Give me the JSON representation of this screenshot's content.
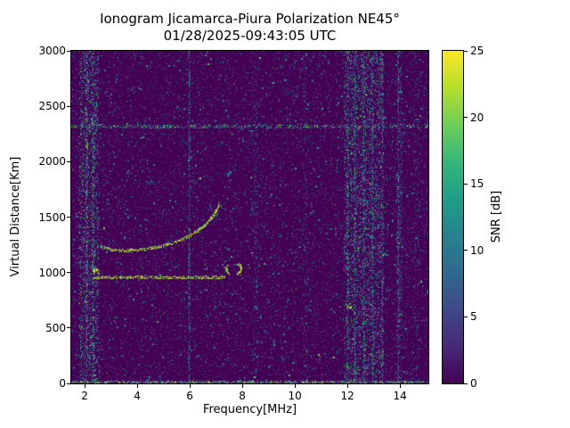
{
  "chart_data": {
    "type": "heatmap",
    "title": "Ionogram Jicamarca-Piura Polarization NE45°",
    "subtitle": "01/28/2025-09:43:05 UTC",
    "xlabel": "Frequency[MHz]",
    "ylabel": "Virtual Distance[Km]",
    "xlim": [
      1.49,
      15.08
    ],
    "ylim": [
      0,
      3000
    ],
    "xticks": [
      2,
      4,
      6,
      8,
      10,
      12,
      14
    ],
    "yticks": [
      0,
      500,
      1000,
      1500,
      2000,
      2500,
      3000
    ],
    "grid": false,
    "colorbar": {
      "label": "SNR [dB]",
      "min": 0,
      "max": 25,
      "ticks": [
        0,
        5,
        10,
        15,
        20,
        25
      ],
      "colormap": "viridis",
      "stops": [
        "#440154",
        "#482878",
        "#3e4989",
        "#31688e",
        "#26828e",
        "#1f9e89",
        "#35b779",
        "#6ece58",
        "#b5de2b",
        "#fde725"
      ]
    },
    "background_snr_db": 0,
    "noise": {
      "seed": 943,
      "sparse_points": 15000,
      "vertical_bands": [
        {
          "from_mhz": 1.78,
          "to_mhz": 2.55,
          "points": 2600,
          "max_v": 0.85
        },
        {
          "from_mhz": 11.88,
          "to_mhz": 13.38,
          "points": 5200,
          "max_v": 0.85
        },
        {
          "from_mhz": 13.85,
          "to_mhz": 14.1,
          "points": 700,
          "max_v": 0.6
        },
        {
          "from_mhz": 8.4,
          "to_mhz": 8.62,
          "points": 350,
          "max_v": 0.5
        },
        {
          "from_mhz": 10.32,
          "to_mhz": 10.5,
          "points": 260,
          "max_v": 0.45
        },
        {
          "from_mhz": 14.5,
          "to_mhz": 14.75,
          "points": 320,
          "max_v": 0.5
        }
      ],
      "vertical_lines": [
        {
          "mhz": 5.98,
          "points": 650,
          "max_v": 0.62
        },
        {
          "mhz": 2.07,
          "points": 520,
          "max_v": 0.9
        },
        {
          "mhz": 2.33,
          "points": 520,
          "max_v": 0.9
        },
        {
          "mhz": 12.02,
          "points": 420,
          "max_v": 0.8
        },
        {
          "mhz": 12.3,
          "points": 430,
          "max_v": 0.8
        },
        {
          "mhz": 12.62,
          "points": 380,
          "max_v": 0.75
        },
        {
          "mhz": 12.95,
          "points": 420,
          "max_v": 0.8
        },
        {
          "mhz": 13.32,
          "points": 330,
          "max_v": 0.7
        },
        {
          "mhz": 13.95,
          "points": 380,
          "max_v": 0.7
        }
      ],
      "horizontal_lines": [
        {
          "km": 2318,
          "points": 850,
          "max_v": 0.9
        },
        {
          "km": 8,
          "points": 1700,
          "max_v": 1.0
        }
      ],
      "hot_spots": [
        {
          "mhz": 12.07,
          "km": 700,
          "points": 14,
          "max_v": 1.0
        },
        {
          "mhz": 2.45,
          "km": 1010,
          "points": 30,
          "max_v": 1.0
        }
      ]
    },
    "traces": [
      {
        "name": "E-region echo",
        "kind": "horizontal",
        "from_mhz": 2.35,
        "to_mhz": 7.35,
        "km": 955,
        "min_v": 0.72,
        "max_v": 1.0
      },
      {
        "name": "F-region trace",
        "kind": "curve",
        "min_v": 0.72,
        "max_v": 1.0,
        "points": [
          [
            2.6,
            1235
          ],
          [
            2.9,
            1210
          ],
          [
            3.3,
            1198
          ],
          [
            3.8,
            1198
          ],
          [
            4.3,
            1210
          ],
          [
            4.8,
            1228
          ],
          [
            5.2,
            1252
          ],
          [
            5.6,
            1285
          ],
          [
            6.0,
            1330
          ],
          [
            6.4,
            1392
          ],
          [
            6.7,
            1455
          ],
          [
            6.9,
            1515
          ],
          [
            7.05,
            1575
          ],
          [
            7.15,
            1630
          ]
        ]
      },
      {
        "name": "oblique echo 1",
        "kind": "curve",
        "min_v": 0.78,
        "max_v": 1.0,
        "points": [
          [
            7.52,
            990
          ],
          [
            7.42,
            1012
          ],
          [
            7.4,
            1038
          ],
          [
            7.46,
            1062
          ]
        ]
      },
      {
        "name": "oblique echo 2",
        "kind": "curve",
        "min_v": 0.78,
        "max_v": 1.0,
        "points": [
          [
            7.8,
            985
          ],
          [
            7.92,
            1005
          ],
          [
            7.97,
            1035
          ],
          [
            7.92,
            1062
          ],
          [
            7.81,
            1080
          ]
        ]
      }
    ]
  }
}
